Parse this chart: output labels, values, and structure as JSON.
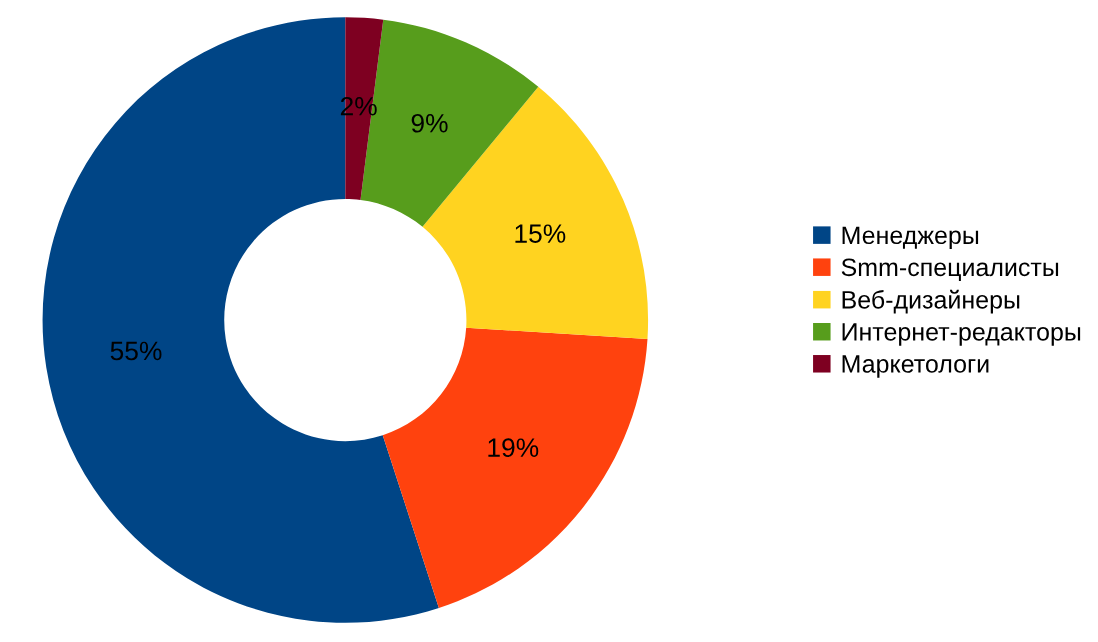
{
  "chart_data": {
    "type": "donut",
    "categories": [
      "Менеджеры",
      "Smm-специалисты",
      "Веб-дизайнеры",
      "Интернет-редакторы",
      "Маркетологи"
    ],
    "values": [
      55,
      19,
      15,
      9,
      2
    ],
    "colors": [
      "#004586",
      "#ff420e",
      "#ffd320",
      "#579d1c",
      "#7e0021"
    ],
    "value_labels": [
      "55%",
      "19%",
      "15%",
      "9%",
      "2%"
    ],
    "legend": "right"
  }
}
